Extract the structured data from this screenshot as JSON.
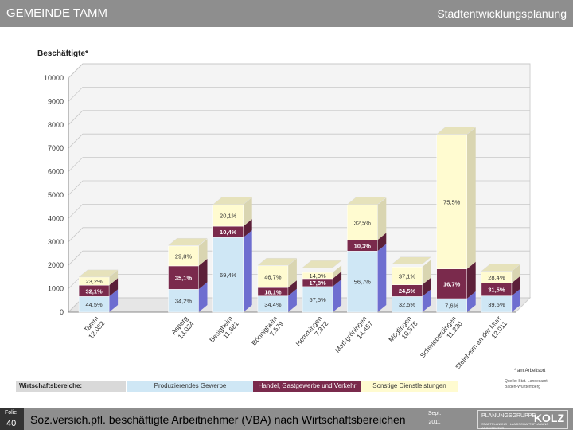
{
  "header": {
    "left": "GEMEINDE TAMM",
    "right": "Stadtentwicklungsplanung"
  },
  "chart_title": "Beschäftigte*",
  "legend": {
    "head": "Wirtschaftsbereiche:",
    "items": [
      "Produzierendes Gewerbe",
      "Handel, Gastgewerbe und Verkehr",
      "Sonstige Dienstleistungen"
    ]
  },
  "colors": {
    "produzierend": "#cfe7f5",
    "handel": "#7a2a4c",
    "sonstige": "#fffbd0",
    "depth": "#6e6ed0"
  },
  "note": "* am Arbeitsort",
  "source": [
    "Quelle:",
    "Stat. Landesamt",
    "Baden-Württemberg"
  ],
  "footer": {
    "folie_label": "Folie",
    "folie_num": "40",
    "title": "Soz.versich.pfl. beschäftigte Arbeitnehmer (VBA) nach Wirtschaftsbereichen",
    "date_month": "Sept.",
    "date_year": "2011"
  },
  "logo": {
    "line1": "PLANUNGSGRUPPE",
    "name": "KOLZ",
    "line3": "STADTPLANUNG · LANDSCHAFTSPLANUNG · ARCHITEKTUR"
  },
  "chart_data": {
    "type": "bar",
    "stacked": true,
    "ylim": [
      0,
      10000
    ],
    "yticks": [
      0,
      1000,
      2000,
      3000,
      4000,
      5000,
      6000,
      7000,
      8000,
      9000,
      10000
    ],
    "grid": true,
    "categories": [
      {
        "name": "Tamm",
        "value": "12.082"
      },
      {
        "name": "",
        "value": ""
      },
      {
        "name": "Asperg",
        "value": "13.024"
      },
      {
        "name": "Besigheim",
        "value": "11.681"
      },
      {
        "name": "Bönnigheim",
        "value": "7.579"
      },
      {
        "name": "Hemmingen",
        "value": "7.372"
      },
      {
        "name": "Markgröningen",
        "value": "14.457"
      },
      {
        "name": "Möglingen",
        "value": "10.578"
      },
      {
        "name": "Schwieberdingen",
        "value": "11.230"
      },
      {
        "name": "Steinheim an der Murr",
        "value": "12.011"
      }
    ],
    "totals": [
      1500,
      0,
      2850,
      4600,
      2000,
      1900,
      4600,
      2050,
      7600,
      1750
    ],
    "series": [
      {
        "name": "Produzierendes Gewerbe",
        "color": "#cfe7f5",
        "percent_labels": [
          "44,5%",
          "",
          "34,2%",
          "69,4%",
          "34,4%",
          "57,5%",
          "56,7%",
          "32,5%",
          "7,6%",
          "39,5%"
        ],
        "shares": [
          0.445,
          0,
          0.342,
          0.694,
          0.344,
          0.575,
          0.567,
          0.325,
          0.076,
          0.395
        ]
      },
      {
        "name": "Handel, Gastgewerbe und Verkehr",
        "color": "#7a2a4c",
        "percent_labels": [
          "32,1%",
          "",
          "35,1%",
          "10,4%",
          "18,1%",
          "17,8%",
          "10,3%",
          "24,5%",
          "16,7%",
          "31,5%"
        ],
        "shares": [
          0.321,
          0,
          0.351,
          0.104,
          0.181,
          0.178,
          0.103,
          0.245,
          0.167,
          0.315
        ]
      },
      {
        "name": "Sonstige Dienstleistungen",
        "color": "#fffbd0",
        "percent_labels": [
          "23,2%",
          "",
          "29,8%",
          "20,1%",
          "46,7%",
          "14,0%",
          "32,5%",
          "37,1%",
          "75,5%",
          "28,4%"
        ],
        "shares": [
          0.232,
          0,
          0.298,
          0.201,
          0.467,
          0.14,
          0.325,
          0.371,
          0.755,
          0.284
        ]
      }
    ]
  }
}
